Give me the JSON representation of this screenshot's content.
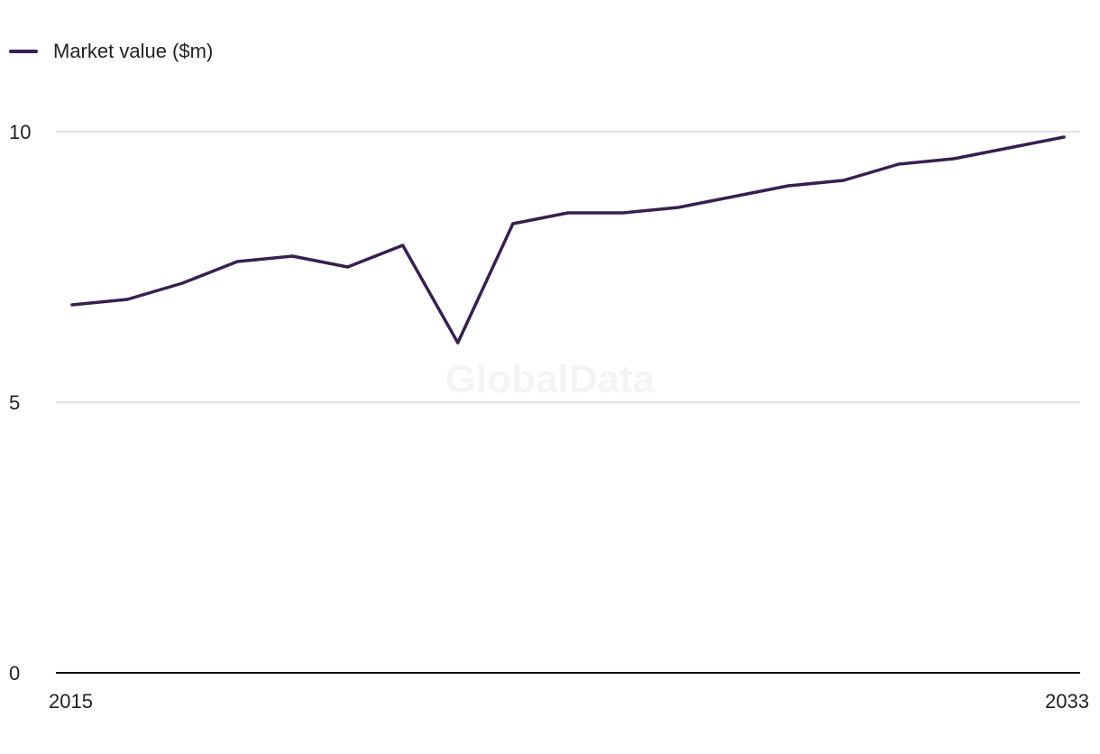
{
  "chart_data": {
    "type": "line",
    "x": [
      2015,
      2016,
      2017,
      2018,
      2019,
      2020,
      2021,
      2022,
      2023,
      2024,
      2025,
      2026,
      2027,
      2028,
      2029,
      2030,
      2031,
      2032,
      2033
    ],
    "series": [
      {
        "name": "Market value ($m)",
        "values": [
          6.8,
          6.9,
          7.2,
          7.6,
          7.7,
          7.5,
          7.9,
          6.1,
          8.3,
          8.5,
          8.5,
          8.6,
          8.8,
          9.0,
          9.1,
          9.4,
          9.5,
          9.7,
          9.9
        ]
      }
    ],
    "xlabel": "",
    "ylabel": "",
    "ylim": [
      0,
      10
    ],
    "yticks": [
      0,
      5,
      10
    ],
    "xtick_labels": [
      "2015",
      "2033"
    ],
    "legend_position": "top-left",
    "grid": true,
    "watermark": "GlobalData"
  },
  "colors": {
    "series": "#37204f",
    "grid": "#d9d9d9",
    "axis": "#111111",
    "text": "#222222",
    "watermark": "#f4f4f4"
  }
}
